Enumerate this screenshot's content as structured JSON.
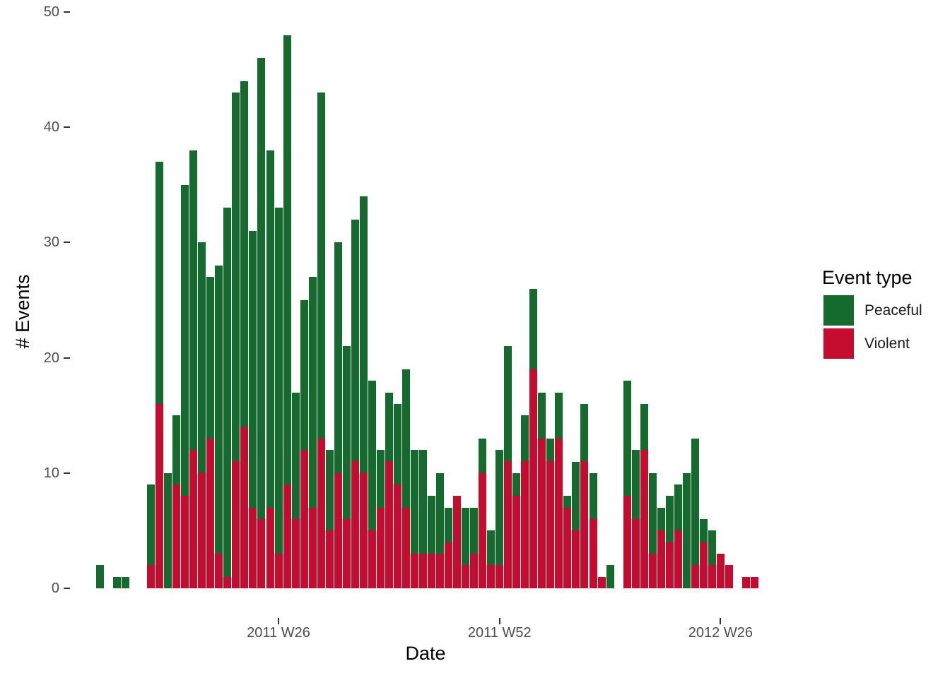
{
  "figure": {
    "x_axis_title": "Date",
    "y_axis_title": "# Events"
  },
  "legend": {
    "title": "Event type",
    "items": [
      {
        "label": "Peaceful",
        "color": "#156B2D"
      },
      {
        "label": "Violent",
        "color": "#C50C2E"
      }
    ]
  },
  "axes": {
    "x": {
      "title": "Date",
      "ticks": [
        {
          "label": "2011 W26",
          "index": 21
        },
        {
          "label": "2011 W52",
          "index": 47
        },
        {
          "label": "2012 W26",
          "index": 73
        }
      ]
    },
    "y": {
      "title": "# Events",
      "ticks": [
        0,
        10,
        20,
        30,
        40,
        50
      ],
      "max": 50
    }
  },
  "chart_data": {
    "type": "bar",
    "stacked": true,
    "title": "",
    "xlabel": "Date",
    "ylabel": "# Events",
    "ylim": [
      0,
      50
    ],
    "grid": false,
    "legend_position": "right",
    "categories": [
      "2011-W05",
      "2011-W06",
      "2011-W07",
      "2011-W08",
      "2011-W09",
      "2011-W10",
      "2011-W11",
      "2011-W12",
      "2011-W13",
      "2011-W14",
      "2011-W15",
      "2011-W16",
      "2011-W17",
      "2011-W18",
      "2011-W19",
      "2011-W20",
      "2011-W21",
      "2011-W22",
      "2011-W23",
      "2011-W24",
      "2011-W25",
      "2011-W26",
      "2011-W27",
      "2011-W28",
      "2011-W29",
      "2011-W30",
      "2011-W31",
      "2011-W32",
      "2011-W33",
      "2011-W34",
      "2011-W35",
      "2011-W36",
      "2011-W37",
      "2011-W38",
      "2011-W39",
      "2011-W40",
      "2011-W41",
      "2011-W42",
      "2011-W43",
      "2011-W44",
      "2011-W45",
      "2011-W46",
      "2011-W47",
      "2011-W48",
      "2011-W49",
      "2011-W50",
      "2011-W51",
      "2011-W52",
      "2012-W01",
      "2012-W02",
      "2012-W03",
      "2012-W04",
      "2012-W05",
      "2012-W06",
      "2012-W07",
      "2012-W08",
      "2012-W09",
      "2012-W10",
      "2012-W11",
      "2012-W12",
      "2012-W13",
      "2012-W14",
      "2012-W15",
      "2012-W16",
      "2012-W17",
      "2012-W18",
      "2012-W19",
      "2012-W20",
      "2012-W21",
      "2012-W22",
      "2012-W23",
      "2012-W24",
      "2012-W25",
      "2012-W26",
      "2012-W27",
      "2012-W28",
      "2012-W29",
      "2012-W30"
    ],
    "series": [
      {
        "name": "Peaceful",
        "color": "#156B2D",
        "values": [
          2,
          0,
          1,
          1,
          0,
          0,
          7,
          21,
          10,
          6,
          27,
          26,
          20,
          14,
          25,
          32,
          32,
          30,
          24,
          40,
          31,
          30,
          39,
          11,
          13,
          20,
          30,
          7,
          20,
          15,
          21,
          24,
          13,
          5,
          6,
          7,
          12,
          9,
          9,
          5,
          7,
          3,
          0,
          5,
          4,
          3,
          3,
          10,
          10,
          2,
          4,
          7,
          4,
          2,
          4,
          1,
          6,
          5,
          4,
          0,
          2,
          0,
          10,
          6,
          4,
          7,
          2,
          4,
          4,
          10,
          11,
          2,
          3,
          0,
          0,
          0,
          0,
          0
        ]
      },
      {
        "name": "Violent",
        "color": "#C50C2E",
        "values": [
          0,
          0,
          0,
          0,
          0,
          0,
          2,
          16,
          0,
          9,
          8,
          12,
          10,
          13,
          3,
          1,
          11,
          14,
          7,
          6,
          7,
          3,
          9,
          6,
          12,
          7,
          13,
          5,
          10,
          6,
          11,
          10,
          5,
          7,
          11,
          9,
          7,
          3,
          3,
          3,
          3,
          4,
          8,
          2,
          3,
          10,
          2,
          2,
          11,
          8,
          11,
          19,
          13,
          11,
          13,
          7,
          5,
          11,
          6,
          1,
          0,
          0,
          8,
          6,
          12,
          3,
          5,
          4,
          5,
          0,
          2,
          4,
          2,
          3,
          2,
          0,
          1,
          1
        ]
      }
    ]
  }
}
